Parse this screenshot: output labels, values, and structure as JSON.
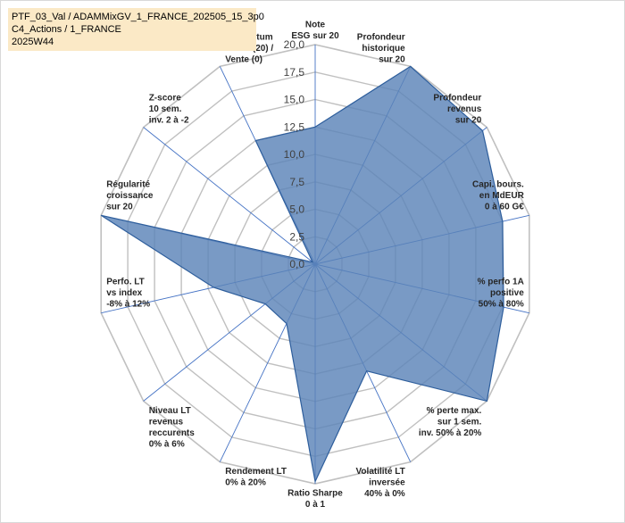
{
  "header": {
    "lines": [
      "PTF_03_Val / ADAMMixGV_1_FRANCE_202505_15_3p0",
      "C4_Actions / 1_FRANCE",
      "2025W44"
    ]
  },
  "chart_data": {
    "type": "radar",
    "title": "",
    "rmax": 20,
    "tick_labels": [
      "0,0",
      "2,5",
      "5,0",
      "7,5",
      "10,0",
      "12,5",
      "15,0",
      "17,5",
      "20,0"
    ],
    "tick_values": [
      0,
      2.5,
      5,
      7.5,
      10,
      12.5,
      15,
      17.5,
      20
    ],
    "grid": true,
    "colors": {
      "fill": "#5b84b8",
      "stroke": "#2e5e9c",
      "grid": "#c0c0c0",
      "spoke": "#4472c4"
    },
    "axes": [
      {
        "label": [
          "Note",
          "ESG sur 20"
        ],
        "value": 12.5
      },
      {
        "label": [
          "Profondeur",
          "historique",
          "sur 20"
        ],
        "value": 20
      },
      {
        "label": [
          "Profondeur",
          "revenus",
          "sur 20"
        ],
        "value": 19.5
      },
      {
        "label": [
          "Capi. bours.",
          "en MdEUR",
          "0 à 60 G€"
        ],
        "value": 17.5
      },
      {
        "label": [
          "% perfo 1A",
          "positive",
          "50% à 80%"
        ],
        "value": 17.6
      },
      {
        "label": [
          "% perte max.",
          "sur 1 sem.",
          "inv. 50% à 20%"
        ],
        "value": 20
      },
      {
        "label": [
          "Volatilité LT",
          "inversée",
          "40% à 0%"
        ],
        "value": 10.8
      },
      {
        "label": [
          "Ratio Sharpe",
          "0 à 1"
        ],
        "value": 19.8
      },
      {
        "label": [
          "Rendement LT",
          "0% à 20%"
        ],
        "value": 6
      },
      {
        "label": [
          "Niveau LT",
          "revenus",
          "reccurents",
          "0% à 6%"
        ],
        "value": 5.8
      },
      {
        "label": [
          "Perfo. LT",
          "vs index",
          "-8% à 12%"
        ],
        "value": 9.5
      },
      {
        "label": [
          "Régularité",
          "croissance",
          "sur 20"
        ],
        "value": 20
      },
      {
        "label": [
          "Z-score",
          "10 sem.",
          "inv. 2 à -2"
        ],
        "value": 0.3
      },
      {
        "label": [
          "Momentum",
          "Achat (20) /",
          "Vente (0)"
        ],
        "value": 12.5
      }
    ]
  }
}
